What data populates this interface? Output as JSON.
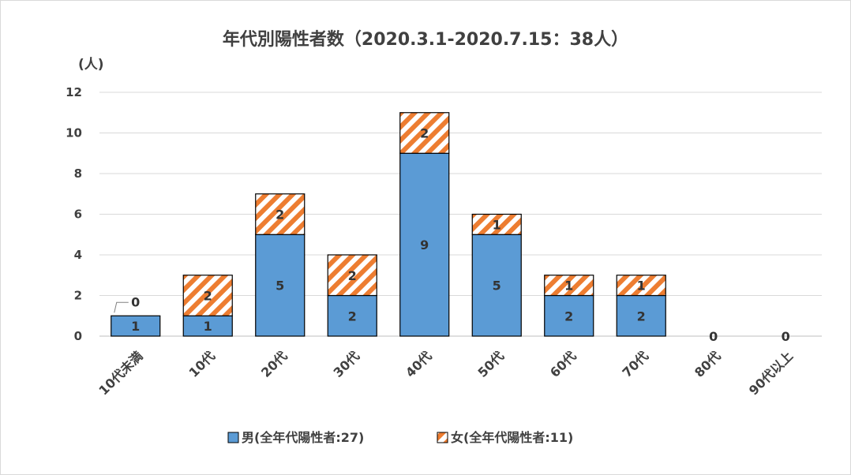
{
  "chart_data": {
    "type": "bar",
    "stacked": true,
    "title": "年代別陽性者数（2020.3.1-2020.7.15：38人）",
    "ylabel": "(人)",
    "ylim": [
      0,
      12
    ],
    "yticks": [
      0,
      2,
      4,
      6,
      8,
      10,
      12
    ],
    "grid": true,
    "legend_position": "bottom",
    "categories": [
      "10代未満",
      "10代",
      "20代",
      "30代",
      "40代",
      "50代",
      "60代",
      "70代",
      "80代",
      "90代以上"
    ],
    "series": [
      {
        "name": "男(全年代陽性者:27)",
        "values": [
          1,
          1,
          5,
          2,
          9,
          5,
          2,
          2,
          0,
          0
        ],
        "color": "#5b9bd5",
        "pattern": "solid"
      },
      {
        "name": "女(全年代陽性者:11)",
        "values": [
          0,
          2,
          2,
          2,
          2,
          1,
          1,
          1,
          0,
          0
        ],
        "color": "#ed7d31",
        "pattern": "diagonal-stripes"
      }
    ],
    "data_labels": {
      "male": [
        "1",
        "1",
        "5",
        "2",
        "9",
        "5",
        "2",
        "2",
        "0",
        "0"
      ],
      "female": [
        "0",
        "2",
        "2",
        "2",
        "2",
        "1",
        "1",
        "1",
        "",
        ""
      ]
    }
  }
}
